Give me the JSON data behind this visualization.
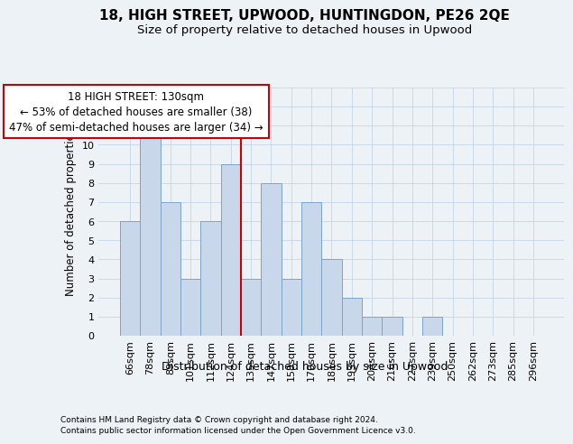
{
  "title1": "18, HIGH STREET, UPWOOD, HUNTINGDON, PE26 2QE",
  "title2": "Size of property relative to detached houses in Upwood",
  "xlabel": "Distribution of detached houses by size in Upwood",
  "ylabel": "Number of detached properties",
  "categories": [
    "66sqm",
    "78sqm",
    "89sqm",
    "101sqm",
    "112sqm",
    "124sqm",
    "135sqm",
    "147sqm",
    "158sqm",
    "170sqm",
    "181sqm",
    "193sqm",
    "204sqm",
    "216sqm",
    "227sqm",
    "239sqm",
    "250sqm",
    "262sqm",
    "273sqm",
    "285sqm",
    "296sqm"
  ],
  "values": [
    6,
    11,
    7,
    3,
    6,
    9,
    3,
    8,
    3,
    7,
    4,
    2,
    1,
    1,
    0,
    1,
    0,
    0,
    0,
    0,
    0
  ],
  "bar_color": "#c8d8ea",
  "bar_edge_color": "#7aa4c8",
  "vline_x": 5.5,
  "vline_color": "#cc0000",
  "annotation_line1": "18 HIGH STREET: 130sqm",
  "annotation_line2": "← 53% of detached houses are smaller (38)",
  "annotation_line3": "47% of semi-detached houses are larger (34) →",
  "annotation_box_color": "white",
  "annotation_box_edge_color": "#cc0000",
  "ylim_max": 13,
  "bg_color": "#edf2f7",
  "grid_color": "#c5d5e8",
  "footnote1": "Contains HM Land Registry data © Crown copyright and database right 2024.",
  "footnote2": "Contains public sector information licensed under the Open Government Licence v3.0.",
  "title1_fontsize": 11,
  "title2_fontsize": 9.5,
  "ylabel_fontsize": 8.5,
  "xlabel_fontsize": 9,
  "tick_fontsize": 8,
  "annotation_fontsize": 8.5,
  "footnote_fontsize": 6.5
}
